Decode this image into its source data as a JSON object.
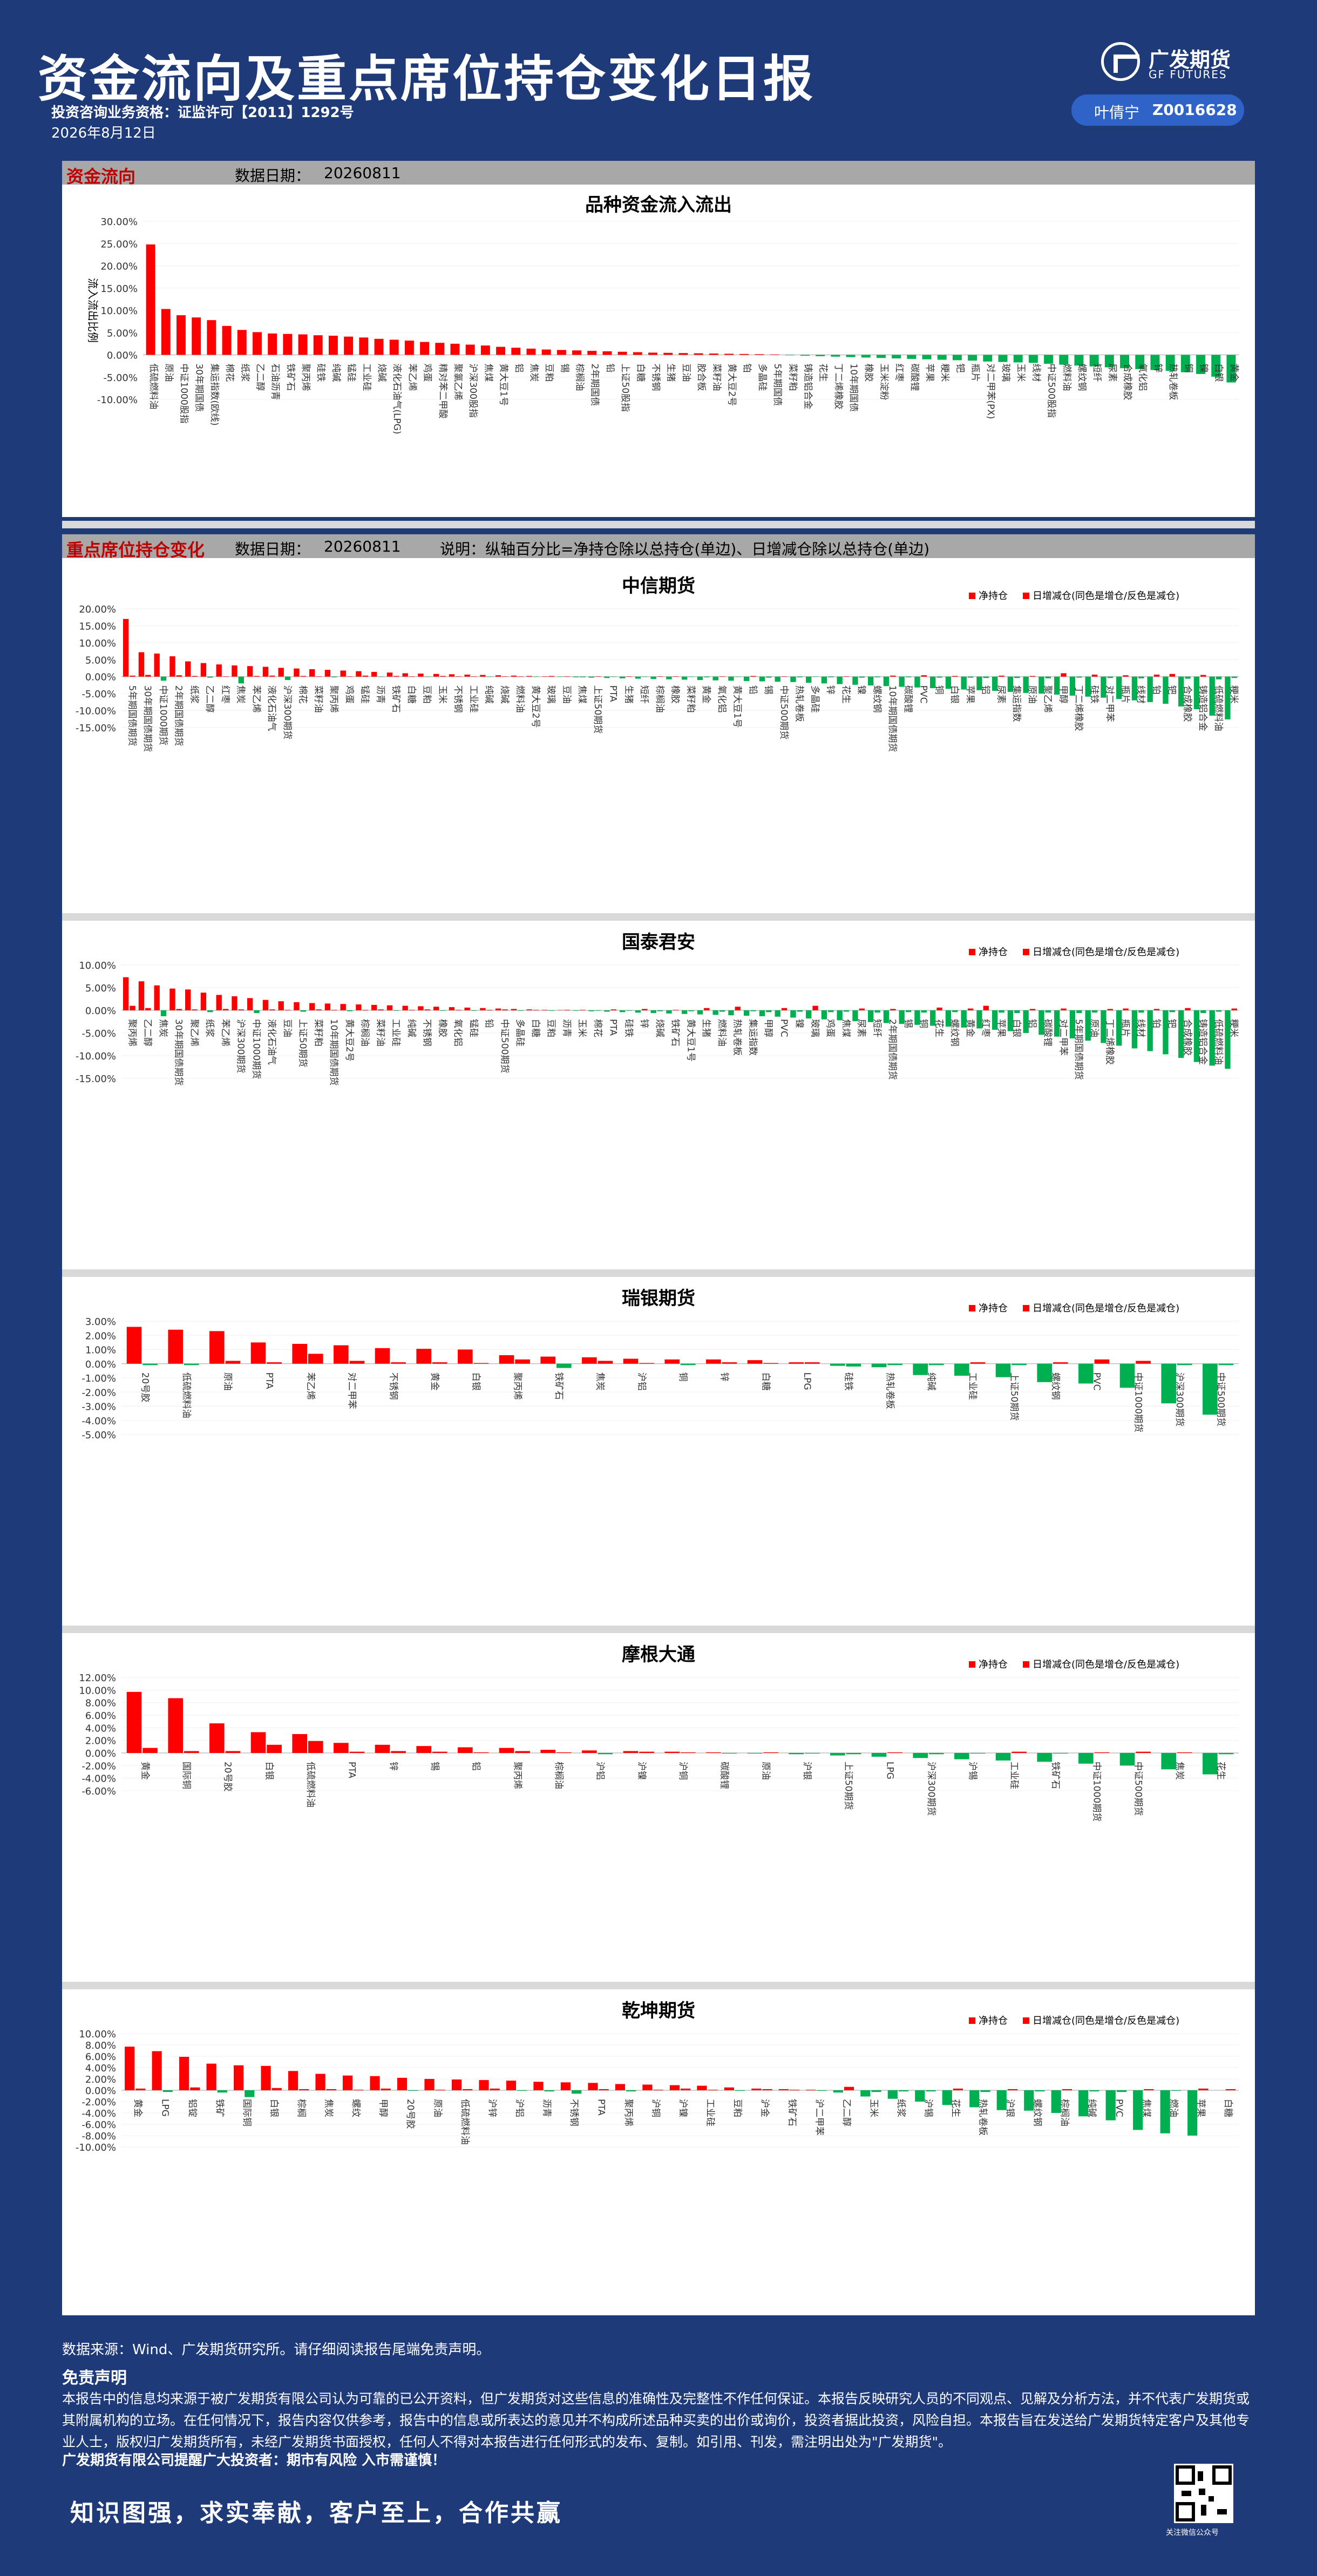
{
  "header": {
    "title": "资金流向及重点席位持仓变化日报",
    "license": "投资咨询业务资格：证监许可【2011】1292号",
    "date": "2026年8月12日",
    "logo_cn": "广发期货",
    "logo_en": "GF FUTURES",
    "analyst_name": "叶倩宁",
    "analyst_code": "Z0016628"
  },
  "colors": {
    "up": "#ff0000",
    "down": "#00b050",
    "header_bg": "#1e3a78"
  },
  "section1": {
    "title": "资金流向",
    "date_label": "数据日期：",
    "date_value": "20260811"
  },
  "section2": {
    "title": "重点席位持仓变化",
    "date_label": "数据日期：",
    "date_value": "20260811",
    "note": "说明：纵轴百分比=净持仓除以总持仓(单边)、日增减仓除以总持仓(单边)"
  },
  "legend": {
    "net": "净持仓",
    "daily": "日增减仓(同色是增仓/反色是减仓)"
  },
  "chart_data": [
    {
      "type": "bar",
      "id": "flow",
      "title": "品种资金流入流出",
      "ylabel": "流入流出比例",
      "yticks": [
        "30.00%",
        "25.00%",
        "20.00%",
        "15.00%",
        "10.00%",
        "5.00%",
        "0.00%",
        "-5.00%",
        "-10.00%"
      ],
      "ylim": [
        -10,
        30
      ],
      "categories": [
        "低硫燃料油",
        "原油",
        "中证1000股指",
        "30年期国债",
        "集运指数(欧线)",
        "棉花",
        "纸浆",
        "乙二醇",
        "石油沥青",
        "铁矿石",
        "聚丙烯",
        "硅铁",
        "纯碱",
        "锰硅",
        "工业硅",
        "烧碱",
        "液化石油气(LPG)",
        "苯乙烯",
        "鸡蛋",
        "精对苯二甲酸",
        "聚氯乙烯",
        "沪深300股指",
        "焦煤",
        "黄大豆1号",
        "铝",
        "焦炭",
        "豆粕",
        "锡",
        "棕榈油",
        "2年期国债",
        "铅",
        "上证50股指",
        "白糖",
        "不锈钢",
        "生猪",
        "豆油",
        "胶合板",
        "菜籽油",
        "黄大豆2号",
        "铂",
        "多晶硅",
        "5年期国债",
        "菜籽粕",
        "铸造铝合金",
        "花生",
        "丁二烯橡胶",
        "10年期国债",
        "橡胶",
        "玉米淀粉",
        "红枣",
        "碳酸锂",
        "苹果",
        "粳米",
        "钯",
        "瓶片",
        "对二甲苯(PX)",
        "玻璃",
        "玉米",
        "线材",
        "中证500股指",
        "燃料油",
        "螺纹钢",
        "短纤",
        "尿素",
        "合成橡胶",
        "氧化铝",
        "锌",
        "热轧卷板",
        "铜",
        "镍",
        "白银",
        "黄金"
      ],
      "values": [
        24.8,
        10.3,
        8.9,
        8.4,
        7.8,
        6.5,
        5.6,
        5.1,
        4.8,
        4.7,
        4.6,
        4.4,
        4.3,
        4.1,
        3.9,
        3.6,
        3.4,
        3.2,
        2.9,
        2.7,
        2.5,
        2.3,
        2.1,
        1.8,
        1.6,
        1.4,
        1.2,
        1.1,
        1.0,
        0.9,
        0.8,
        0.7,
        0.6,
        0.5,
        0.45,
        0.4,
        0.35,
        0.3,
        0.25,
        0.2,
        0.15,
        0.1,
        -0.1,
        -0.2,
        -0.3,
        -0.4,
        -0.5,
        -0.6,
        -0.7,
        -0.8,
        -0.9,
        -1.0,
        -1.1,
        -1.2,
        -1.3,
        -1.5,
        -1.6,
        -1.7,
        -1.8,
        -2.0,
        -2.2,
        -2.4,
        -2.6,
        -2.8,
        -3.0,
        -3.2,
        -3.4,
        -3.6,
        -3.9,
        -4.3,
        -4.9,
        -6.2
      ]
    },
    {
      "type": "bar",
      "id": "zx",
      "title": "中信期货",
      "yticks": [
        "20.00%",
        "15.00%",
        "10.00%",
        "5.00%",
        "0.00%",
        "-5.00%",
        "-10.00%",
        "-15.00%"
      ],
      "ylim": [
        -15,
        20
      ],
      "categories": [
        "5年期国债期货",
        "30年期国债期货",
        "中证1000期货",
        "2年期国债期货",
        "纸浆",
        "乙二醇",
        "红枣",
        "焦炭",
        "苯乙烯",
        "液化石油气",
        "沪深300期货",
        "棉花",
        "菜籽油",
        "聚丙烯",
        "鸡蛋",
        "锰硅",
        "沥青",
        "铁矿石",
        "白糖",
        "豆粕",
        "玉米",
        "不锈钢",
        "工业硅",
        "纯碱",
        "烧碱",
        "燃料油",
        "黄大豆2号",
        "玻璃",
        "豆油",
        "焦煤",
        "上证50期货",
        "PTA",
        "生猪",
        "短纤",
        "棕榈油",
        "橡胶",
        "菜籽粕",
        "黄金",
        "氧化铝",
        "黄大豆1号",
        "铅",
        "锡",
        "中证500期货",
        "热轧卷板",
        "多晶硅",
        "锌",
        "花生",
        "镍",
        "螺纹钢",
        "10年期国债期货",
        "碳酸锂",
        "PVC",
        "铜",
        "白银",
        "苹果",
        "铝",
        "尿素",
        "集运指数",
        "原油",
        "聚乙烯",
        "甲醇",
        "丁二烯橡胶",
        "硅铁",
        "对二甲苯",
        "瓶片",
        "线材",
        "铂",
        "钯",
        "合成橡胶",
        "铸造铝合金",
        "低硫燃料油",
        "粳米"
      ],
      "net": [
        17.0,
        7.2,
        6.8,
        6.0,
        4.5,
        4.0,
        3.6,
        3.3,
        3.1,
        2.9,
        2.6,
        2.4,
        2.2,
        2.0,
        1.8,
        1.6,
        1.4,
        1.2,
        1.0,
        0.9,
        0.8,
        0.7,
        0.6,
        0.5,
        0.4,
        0.3,
        0.2,
        0.1,
        -0.1,
        -0.2,
        -0.3,
        -0.4,
        -0.5,
        -0.6,
        -0.7,
        -0.8,
        -0.9,
        -1.0,
        -1.1,
        -1.2,
        -1.3,
        -1.4,
        -1.5,
        -1.6,
        -1.8,
        -2.0,
        -2.2,
        -2.4,
        -2.6,
        -2.8,
        -3.0,
        -3.2,
        -3.4,
        -3.6,
        -3.8,
        -4.0,
        -4.2,
        -4.5,
        -4.8,
        -5.0,
        -5.3,
        -5.6,
        -5.9,
        -6.2,
        -6.6,
        -7.0,
        -7.5,
        -8.0,
        -8.8,
        -9.6,
        -11.5,
        -12.6
      ],
      "daily": [
        0.3,
        0.5,
        -1.2,
        0.4,
        0.2,
        -0.3,
        0.1,
        -2.0,
        0.2,
        0.3,
        -1.0,
        0.2,
        0.1,
        -0.2,
        0.1,
        0.3,
        -0.1,
        0.2,
        0.1,
        -0.1,
        0.2,
        0.1,
        0.1,
        -0.1,
        0.1,
        0.1,
        -0.1,
        0.2,
        0.1,
        -0.2,
        0.1,
        -0.1,
        0.1,
        -0.1,
        0.1,
        0.1,
        -0.1,
        -0.2,
        0.1,
        -0.1,
        0.2,
        -0.3,
        0.1,
        -0.2,
        -0.1,
        -0.2,
        0.1,
        -0.3,
        -0.2,
        0.3,
        -0.2,
        0.4,
        -0.3,
        0.2,
        -0.3,
        -0.4,
        0.3,
        -0.4,
        0.2,
        -0.5,
        1.0,
        -0.3,
        0.6,
        -0.4,
        0.4,
        -0.5,
        0.6,
        0.8,
        -0.6,
        0.5,
        -0.8,
        -0.4
      ]
    },
    {
      "type": "bar",
      "id": "gt",
      "title": "国泰君安",
      "yticks": [
        "10.00%",
        "5.00%",
        "0.00%",
        "-5.00%",
        "-10.00%",
        "-15.00%"
      ],
      "ylim": [
        -15,
        10
      ],
      "categories": [
        "聚丙烯",
        "乙二醇",
        "焦炭",
        "30年期国债期货",
        "聚乙烯",
        "纸浆",
        "苯乙烯",
        "沪深300期货",
        "中证1000期货",
        "液化石油气",
        "豆油",
        "上证50期货",
        "菜籽粕",
        "10年期国债期货",
        "黄大豆2号",
        "棕榈油",
        "菜籽油",
        "工业硅",
        "纯碱",
        "不锈钢",
        "橡胶",
        "氧化铝",
        "锰硅",
        "铅",
        "中证500期货",
        "多晶硅",
        "白糖",
        "豆粕",
        "沥青",
        "玉米",
        "棉花",
        "PTA",
        "硅铁",
        "锌",
        "烧碱",
        "铁矿石",
        "黄大豆1号",
        "生猪",
        "燃料油",
        "热轧卷板",
        "集运指数",
        "甲醇",
        "PVC",
        "镍",
        "玻璃",
        "鸡蛋",
        "焦煤",
        "尿素",
        "短纤",
        "2年期国债期货",
        "锡",
        "铜",
        "花生",
        "螺纹钢",
        "黄金",
        "红枣",
        "苹果",
        "白银",
        "铝",
        "碳酸锂",
        "对二甲苯",
        "5年期国债期货",
        "原油",
        "丁二烯橡胶",
        "瓶片",
        "线材",
        "铂",
        "钯",
        "合成橡胶",
        "铸造铝合金",
        "低硫燃料油",
        "粳米"
      ],
      "net": [
        7.3,
        6.4,
        5.5,
        4.8,
        4.6,
        3.9,
        3.4,
        3.1,
        2.7,
        2.3,
        2.0,
        1.8,
        1.6,
        1.5,
        1.4,
        1.3,
        1.2,
        1.1,
        1.0,
        0.9,
        0.8,
        0.7,
        0.6,
        0.5,
        0.4,
        0.3,
        0.2,
        0.1,
        0.05,
        -0.1,
        -0.2,
        -0.3,
        -0.4,
        -0.5,
        -0.6,
        -0.7,
        -0.8,
        -0.9,
        -1.0,
        -1.1,
        -1.2,
        -1.3,
        -1.4,
        -1.6,
        -1.8,
        -2.0,
        -2.2,
        -2.4,
        -2.6,
        -2.8,
        -3.0,
        -3.2,
        -3.4,
        -3.6,
        -3.8,
        -4.0,
        -4.3,
        -4.6,
        -5.0,
        -5.4,
        -5.8,
        -6.2,
        -6.7,
        -7.2,
        -7.8,
        -8.4,
        -9.0,
        -9.7,
        -10.5,
        -11.4,
        -12.2,
        -12.9
      ],
      "daily": [
        1.0,
        0.5,
        -1.3,
        0.3,
        0.2,
        -0.4,
        0.3,
        0.2,
        -0.6,
        0.2,
        0.1,
        -0.3,
        0.2,
        0.1,
        -0.2,
        0.1,
        0.2,
        -0.1,
        0.1,
        0.2,
        -0.1,
        0.1,
        -0.1,
        0.1,
        0.2,
        -0.1,
        0.1,
        -0.1,
        0.1,
        0.1,
        -0.1,
        0.2,
        -0.1,
        0.3,
        -0.2,
        0.1,
        -0.2,
        0.5,
        -0.3,
        0.8,
        -0.2,
        -0.4,
        0.5,
        -0.3,
        1.0,
        -0.4,
        -0.3,
        0.4,
        -0.5,
        0.3,
        -0.4,
        -0.5,
        0.6,
        -0.4,
        0.4,
        1.0,
        -0.5,
        -0.6,
        0.3,
        -0.5,
        0.4,
        -0.6,
        -0.5,
        0.3,
        0.4,
        -0.5,
        0.3,
        -0.4,
        0.5,
        -0.6,
        -0.3,
        0.4
      ]
    },
    {
      "type": "bar",
      "id": "rx",
      "title": "瑞银期货",
      "yticks": [
        "3.00%",
        "2.00%",
        "1.00%",
        "0.00%",
        "-1.00%",
        "-2.00%",
        "-3.00%",
        "-4.00%",
        "-5.00%"
      ],
      "ylim": [
        -5,
        3
      ],
      "categories": [
        "20号胶",
        "低硫燃料油",
        "原油",
        "PTA",
        "苯乙烯",
        "对二甲苯",
        "不锈钢",
        "黄金",
        "白银",
        "聚丙烯",
        "铁矿石",
        "焦炭",
        "沪铝",
        "铜",
        "锌",
        "白糖",
        "LPG",
        "硅铁",
        "热轧卷板",
        "纯碱",
        "工业硅",
        "上证50期货",
        "螺纹钢",
        "PVC",
        "中证1000期货",
        "沪深300期货",
        "中证500期货"
      ],
      "net": [
        2.6,
        2.4,
        2.3,
        1.5,
        1.4,
        1.3,
        1.1,
        1.05,
        1.0,
        0.6,
        0.5,
        0.45,
        0.35,
        0.3,
        0.3,
        0.25,
        0.1,
        -0.15,
        -0.25,
        -0.8,
        -0.85,
        -0.95,
        -1.3,
        -1.4,
        -1.7,
        -2.8,
        -3.6,
        -4.0
      ],
      "daily": [
        -0.1,
        -0.1,
        0.2,
        0.1,
        0.7,
        0.2,
        0.1,
        0.1,
        0.05,
        0.3,
        -0.3,
        0.2,
        0.05,
        -0.1,
        0.1,
        0.05,
        0.1,
        -0.2,
        -0.1,
        -0.1,
        0.1,
        -0.1,
        0.1,
        0.3,
        0.2,
        -0.1,
        -0.1,
        0.05
      ]
    },
    {
      "type": "bar",
      "id": "mg",
      "title": "摩根大通",
      "yticks": [
        "12.00%",
        "10.00%",
        "8.00%",
        "6.00%",
        "4.00%",
        "2.00%",
        "0.00%",
        "-2.00%",
        "-4.00%",
        "-6.00%"
      ],
      "ylim": [
        -6,
        12
      ],
      "categories": [
        "黄金",
        "国际铜",
        "20号胶",
        "白银",
        "低硫燃料油",
        "PTA",
        "锌",
        "锡",
        "铝",
        "聚丙烯",
        "棕榈油",
        "沪铝",
        "沪镍",
        "沪铜",
        "碳酸锂",
        "原油",
        "沪银",
        "上证50期货",
        "LPG",
        "沪深300期货",
        "沪锡",
        "工业硅",
        "铁矿石",
        "中证1000期货",
        "中证500期货",
        "焦炭",
        "花生"
      ],
      "net": [
        9.7,
        8.7,
        4.7,
        3.3,
        3.0,
        1.6,
        1.3,
        1.1,
        0.9,
        0.8,
        0.5,
        0.4,
        0.3,
        0.2,
        0.1,
        -0.1,
        -0.2,
        -0.4,
        -0.6,
        -0.8,
        -1.0,
        -1.2,
        -1.4,
        -1.7,
        -2.0,
        -2.6,
        -3.4,
        -3.8
      ],
      "daily": [
        0.8,
        0.3,
        0.3,
        1.3,
        1.9,
        0.2,
        0.3,
        0.2,
        0.1,
        0.3,
        0.1,
        -0.2,
        0.2,
        0.1,
        -0.1,
        0.1,
        -0.1,
        -0.2,
        0.1,
        -0.2,
        -0.1,
        0.2,
        -0.1,
        0.1,
        0.2,
        0.1,
        -0.2,
        -0.3
      ]
    },
    {
      "type": "bar",
      "id": "qk",
      "title": "乾坤期货",
      "yticks": [
        "10.00%",
        "8.00%",
        "6.00%",
        "4.00%",
        "2.00%",
        "0.00%",
        "-2.00%",
        "-4.00%",
        "-6.00%",
        "-8.00%",
        "-10.00%"
      ],
      "ylim": [
        -10,
        10
      ],
      "categories": [
        "黄金",
        "LPG",
        "铝锭",
        "铁矿",
        "国际铜",
        "白银",
        "棕榈",
        "焦炭",
        "螺纹",
        "甲醇",
        "20号胶",
        "原油",
        "低硫燃料油",
        "沪锌",
        "沪铝",
        "沥青",
        "不锈钢",
        "PTA",
        "聚丙烯",
        "沪铜",
        "沪镍",
        "工业硅",
        "豆粕",
        "沪金",
        "铁矿石",
        "沪二甲苯",
        "乙二醇",
        "玉米",
        "纸浆",
        "沪锡",
        "花生",
        "热轧卷板",
        "沪银",
        "螺纹钢",
        "棕榈油",
        "纯碱",
        "PVC",
        "焦煤",
        "燃油",
        "苹果",
        "白糖"
      ],
      "net": [
        7.7,
        6.9,
        5.9,
        4.7,
        4.4,
        4.3,
        3.4,
        2.9,
        2.6,
        2.5,
        2.2,
        2.0,
        1.9,
        1.8,
        1.7,
        1.5,
        1.4,
        1.3,
        1.1,
        1.0,
        0.9,
        0.8,
        0.5,
        0.3,
        0.2,
        0.1,
        -0.4,
        -1.1,
        -1.5,
        -2.0,
        -2.6,
        -3.0,
        -3.5,
        -3.6,
        -4.0,
        -4.6,
        -5.3,
        -7.0,
        -7.6,
        -8.0
      ],
      "daily": [
        0.3,
        -0.3,
        0.5,
        -0.4,
        -1.2,
        0.4,
        0.2,
        0.2,
        0.1,
        0.3,
        -0.1,
        0.1,
        0.2,
        0.3,
        -0.1,
        -0.2,
        -0.6,
        0.2,
        -0.2,
        0.1,
        0.3,
        0.1,
        -0.1,
        0.2,
        0.1,
        -0.1,
        0.6,
        -0.3,
        -0.2,
        -0.2,
        0.3,
        -0.3,
        0.2,
        -0.2,
        0.2,
        -0.2,
        -0.3,
        0.2,
        -0.1,
        0.3,
        0.2
      ]
    }
  ],
  "footer": {
    "source": "数据来源：Wind、广发期货研究所。请仔细阅读报告尾端免责声明。",
    "disclaimer_title": "免责声明",
    "disclaimer_text": "本报告中的信息均来源于被广发期货有限公司认为可靠的已公开资料，但广发期货对这些信息的准确性及完整性不作任何保证。本报告反映研究人员的不同观点、见解及分析方法，并不代表广发期货或其附属机构的立场。在任何情况下，报告内容仅供参考，报告中的信息或所表达的意见并不构成所述品种买卖的出价或询价，投资者据此投资，风险自担。本报告旨在发送给广发期货特定客户及其他专业人士，版权归广发期货所有，未经广发期货书面授权，任何人不得对本报告进行任何形式的发布、复制。如引用、刊发，需注明出处为\"广发期货\"。",
    "company": "广发期货有限公司提醒广大投资者：期市有风险 入市需谨慎！",
    "slogan": "知识图强，求实奉献，客户至上，合作共赢",
    "qr_label": "关注微信公众号"
  }
}
